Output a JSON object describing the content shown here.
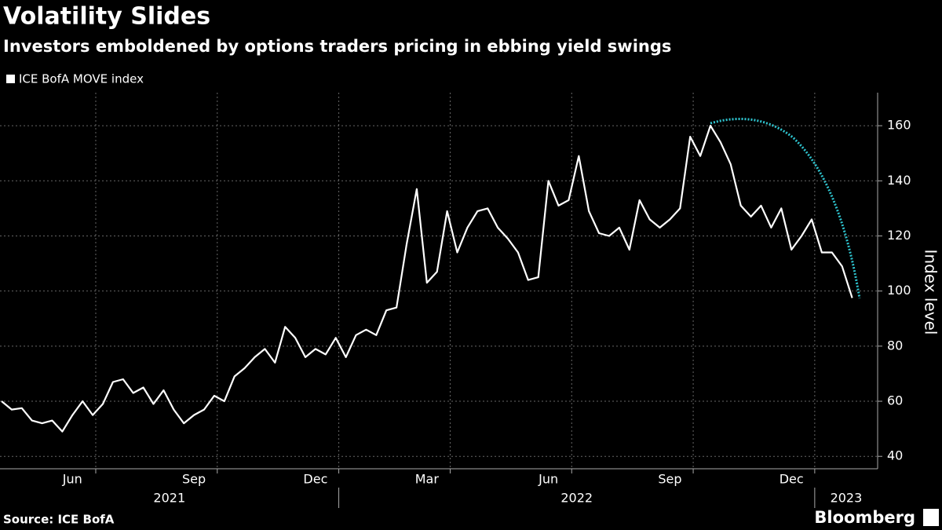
{
  "chart_data": {
    "type": "line",
    "title": "Volatility Slides",
    "subtitle": "Investors emboldened by options traders pricing in ebbing yield swings",
    "y_axis_label": "Index level",
    "source": "Source: ICE BofA",
    "brand": "Bloomberg",
    "categories": [
      null,
      null,
      null,
      null,
      null,
      null,
      null,
      "Jun",
      null,
      null,
      null,
      null,
      null,
      null,
      null,
      null,
      null,
      null,
      null,
      "Sep",
      null,
      null,
      null,
      null,
      null,
      null,
      null,
      null,
      null,
      null,
      null,
      "Dec",
      null,
      null,
      null,
      null,
      null,
      null,
      null,
      null,
      null,
      null,
      "Mar",
      null,
      null,
      null,
      null,
      null,
      null,
      null,
      null,
      null,
      null,
      null,
      "Jun",
      null,
      null,
      null,
      null,
      null,
      null,
      null,
      null,
      null,
      null,
      null,
      "Sep",
      null,
      null,
      null,
      null,
      null,
      null,
      null,
      null,
      null,
      null,
      null,
      "Dec",
      null,
      null,
      null,
      null,
      null,
      null
    ],
    "x_groups": [
      {
        "label": "2021"
      },
      {
        "label": "2022"
      },
      {
        "label": "2023"
      }
    ],
    "series": [
      {
        "name": "ICE BofA MOVE index",
        "color": "#ffffff",
        "values": [
          60,
          57,
          57.5,
          53,
          52,
          53,
          49,
          55,
          60,
          55,
          59,
          67,
          68,
          63,
          65,
          59,
          64,
          57,
          52,
          55,
          57,
          62,
          60,
          69,
          72,
          76,
          79,
          74,
          87,
          83,
          76,
          79,
          77,
          83,
          76,
          84,
          86,
          84,
          93,
          94,
          117,
          137,
          103,
          107,
          129,
          114,
          123,
          129,
          130,
          123,
          119,
          114,
          104,
          105,
          140,
          131,
          133,
          149,
          129,
          121,
          120,
          123,
          115,
          133,
          126,
          123,
          126,
          130,
          156,
          149,
          160,
          154,
          146,
          131,
          127,
          131,
          123,
          130,
          115,
          120,
          126,
          114,
          114,
          109,
          97.5
        ]
      }
    ],
    "ylim": [
      35.5,
      172
    ],
    "yticks": [
      40,
      60,
      80,
      100,
      120,
      140,
      160
    ],
    "grid": true
  }
}
